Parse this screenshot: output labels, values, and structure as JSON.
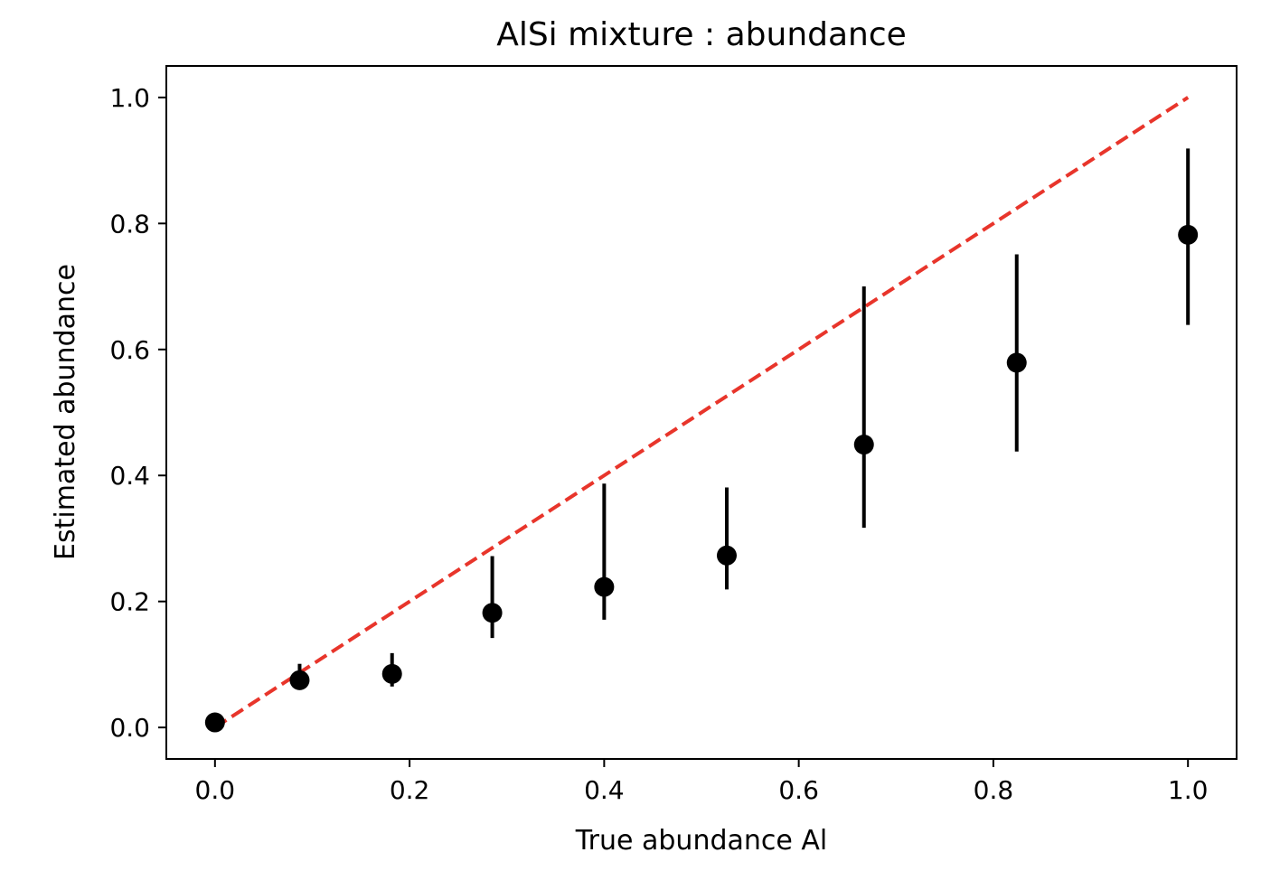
{
  "chart_data": {
    "type": "scatter",
    "title": "AlSi mixture : abundance",
    "xlabel": "True abundance Al",
    "ylabel": "Estimated abundance",
    "xlim": [
      -0.05,
      1.05
    ],
    "ylim": [
      -0.05,
      1.05
    ],
    "xticks": [
      0.0,
      0.2,
      0.4,
      0.6,
      0.8,
      1.0
    ],
    "yticks": [
      0.0,
      0.2,
      0.4,
      0.6,
      0.8,
      1.0
    ],
    "xtick_labels": [
      "0.0",
      "0.2",
      "0.4",
      "0.6",
      "0.8",
      "1.0"
    ],
    "ytick_labels": [
      "0.0",
      "0.2",
      "0.4",
      "0.6",
      "0.8",
      "1.0"
    ],
    "grid": false,
    "series": [
      {
        "marker_color": "#000000",
        "x": [
          0.0,
          0.087,
          0.182,
          0.285,
          0.4,
          0.526,
          0.667,
          0.824,
          1.0
        ],
        "y": [
          0.008,
          0.075,
          0.085,
          0.182,
          0.223,
          0.273,
          0.449,
          0.579,
          0.782
        ],
        "ylow": [
          0.003,
          0.068,
          0.065,
          0.142,
          0.171,
          0.219,
          0.317,
          0.438,
          0.639
        ],
        "yhigh": [
          0.014,
          0.101,
          0.118,
          0.272,
          0.387,
          0.381,
          0.7,
          0.751,
          0.919
        ]
      }
    ],
    "reference_line": {
      "x": [
        0.0,
        1.0
      ],
      "y": [
        0.0,
        1.0
      ],
      "style": "dashed",
      "color": "#e8352b"
    }
  }
}
